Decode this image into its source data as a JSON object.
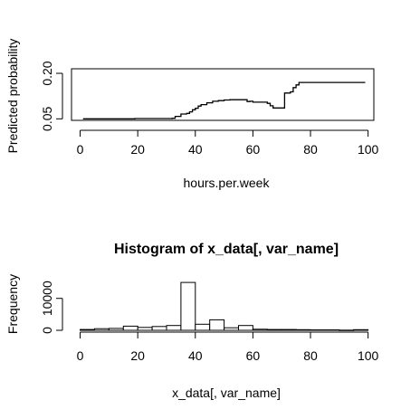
{
  "chart_data": [
    {
      "type": "line",
      "title": "",
      "xlabel": "hours.per.week",
      "ylabel": "Predicted probability",
      "xlim": [
        -3,
        102
      ],
      "ylim": [
        0.045,
        0.215
      ],
      "xticks": [
        0,
        20,
        40,
        60,
        80,
        100
      ],
      "yticks": [
        0.05,
        0.2
      ],
      "ytick_labels": [
        "0.05",
        "0.20"
      ],
      "line_color": "#000000",
      "grid": false,
      "x": [
        1,
        10,
        19,
        25,
        32,
        33,
        35,
        37,
        38,
        39,
        40,
        41,
        42,
        44,
        46,
        48,
        50,
        52,
        54,
        56,
        58,
        59,
        60,
        62,
        64,
        65,
        66,
        67,
        68,
        69,
        70,
        71,
        72,
        73,
        74,
        75,
        76,
        80,
        90,
        99
      ],
      "y": [
        0.05,
        0.05,
        0.051,
        0.051,
        0.052,
        0.058,
        0.066,
        0.068,
        0.073,
        0.08,
        0.085,
        0.092,
        0.097,
        0.103,
        0.108,
        0.11,
        0.112,
        0.113,
        0.113,
        0.113,
        0.107,
        0.108,
        0.105,
        0.105,
        0.105,
        0.101,
        0.093,
        0.086,
        0.086,
        0.086,
        0.086,
        0.135,
        0.135,
        0.139,
        0.153,
        0.162,
        0.17,
        0.17,
        0.17,
        0.17
      ]
    },
    {
      "type": "bar",
      "title": "Histogram of x_data[, var_name]",
      "xlabel": "x_data[, var_name]",
      "ylabel": "Frequency",
      "xlim": [
        -3,
        102
      ],
      "ylim": [
        0,
        17000
      ],
      "xticks": [
        0,
        20,
        40,
        60,
        80,
        100
      ],
      "yticks": [
        0,
        10000
      ],
      "bar_fill": "#ffffff",
      "bar_stroke": "#000000",
      "grid": false,
      "bins": [
        {
          "from": 0,
          "to": 5,
          "count": 250
        },
        {
          "from": 5,
          "to": 10,
          "count": 500
        },
        {
          "from": 10,
          "to": 15,
          "count": 600
        },
        {
          "from": 15,
          "to": 20,
          "count": 1300
        },
        {
          "from": 20,
          "to": 25,
          "count": 900
        },
        {
          "from": 25,
          "to": 30,
          "count": 1200
        },
        {
          "from": 30,
          "to": 35,
          "count": 1500
        },
        {
          "from": 35,
          "to": 40,
          "count": 15000
        },
        {
          "from": 40,
          "to": 45,
          "count": 1900
        },
        {
          "from": 45,
          "to": 50,
          "count": 3300
        },
        {
          "from": 50,
          "to": 55,
          "count": 800
        },
        {
          "from": 55,
          "to": 60,
          "count": 1500
        },
        {
          "from": 60,
          "to": 65,
          "count": 350
        },
        {
          "from": 65,
          "to": 70,
          "count": 250
        },
        {
          "from": 70,
          "to": 75,
          "count": 250
        },
        {
          "from": 75,
          "to": 80,
          "count": 200
        },
        {
          "from": 80,
          "to": 85,
          "count": 150
        },
        {
          "from": 85,
          "to": 90,
          "count": 150
        },
        {
          "from": 90,
          "to": 95,
          "count": 50
        },
        {
          "from": 95,
          "to": 100,
          "count": 200
        }
      ]
    }
  ]
}
